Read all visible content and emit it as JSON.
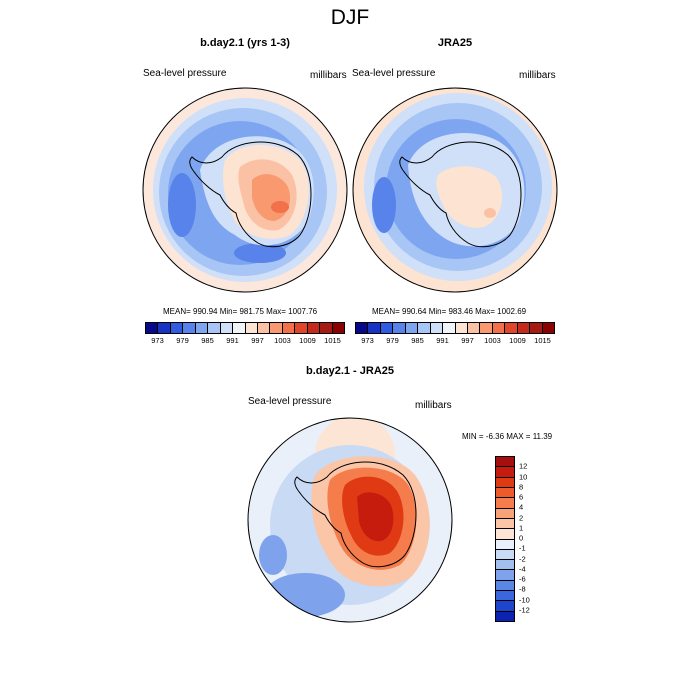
{
  "chart_data": {
    "type": "heatmap",
    "title": "DJF",
    "panels": [
      {
        "title": "b.day2.1 (yrs 1-3)",
        "left_label": "Sea-level pressure",
        "right_label": "millibars",
        "stats": "MEAN= 990.94  Min= 981.75  Max= 1007.76",
        "mean": 990.94,
        "min": 981.75,
        "max": 1007.76
      },
      {
        "title": "JRA25",
        "left_label": "Sea-level pressure",
        "right_label": "millibars",
        "stats": "MEAN= 990.64  Min= 983.46  Max= 1002.69",
        "mean": 990.64,
        "min": 983.46,
        "max": 1002.69
      }
    ],
    "levels": [
      973,
      979,
      985,
      991,
      997,
      1003,
      1009,
      1015
    ],
    "level_colors": [
      "#08088a",
      "#1733c4",
      "#2f5ce0",
      "#5883ea",
      "#7ea6f0",
      "#a7c5f5",
      "#cfe0f8",
      "#f1f5fa",
      "#fde3d1",
      "#fbc1a4",
      "#f8996f",
      "#f2704a",
      "#e1462a",
      "#c62a1a",
      "#a51a12",
      "#8b0000"
    ],
    "difference": {
      "title": "b.day2.1 - JRA25",
      "left_label": "Sea-level pressure",
      "right_label": "millibars",
      "stats": "MIN =  -6.36 MAX =  11.39",
      "min": -6.36,
      "max": 11.39,
      "levels": [
        12,
        10,
        8,
        6,
        4,
        2,
        1,
        0,
        -1,
        -2,
        -4,
        -6,
        -8,
        -10,
        -12
      ],
      "level_colors": [
        "#a50f0f",
        "#c51c0e",
        "#e03a14",
        "#ef5a2a",
        "#f57d4c",
        "#f9a27a",
        "#fbc5a8",
        "#fde5d6",
        "#e9f0fa",
        "#c8daf4",
        "#a2bff0",
        "#7ea3ec",
        "#5a86e6",
        "#3a67dd",
        "#1d45cd",
        "#0b23b0"
      ]
    }
  }
}
